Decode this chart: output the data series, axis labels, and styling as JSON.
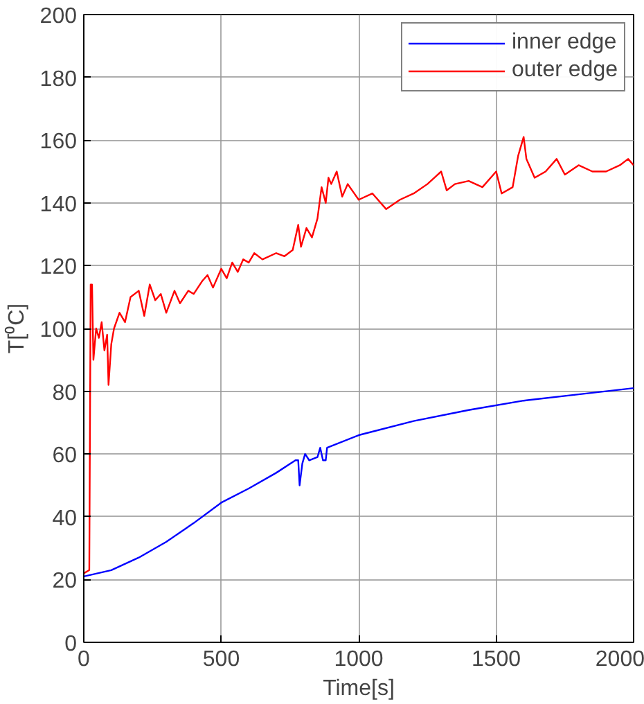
{
  "chart_data": {
    "type": "line",
    "xlabel": "Time[s]",
    "ylabel": "T[⁰C]",
    "xlim": [
      0,
      2000
    ],
    "ylim": [
      0,
      200
    ],
    "xticks": [
      0,
      500,
      1000,
      1500,
      2000
    ],
    "yticks": [
      0,
      20,
      40,
      60,
      80,
      100,
      120,
      140,
      160,
      180,
      200
    ],
    "grid": true,
    "legend": "top right",
    "series": [
      {
        "name": "inner edge",
        "color": "#0000ff",
        "x": [
          0,
          100,
          200,
          300,
          400,
          500,
          600,
          700,
          770,
          780,
          785,
          795,
          805,
          820,
          850,
          860,
          870,
          880,
          885,
          1000,
          1200,
          1400,
          1600,
          1800,
          2000
        ],
        "values": [
          21,
          23,
          27,
          32,
          38,
          44.5,
          49,
          54,
          58,
          58,
          50,
          57,
          60,
          58,
          59,
          62,
          58,
          58,
          62,
          66,
          70.5,
          74,
          77,
          79,
          81
        ]
      },
      {
        "name": "outer edge",
        "color": "#ff0000",
        "x": [
          0,
          20,
          25,
          30,
          35,
          45,
          55,
          65,
          75,
          85,
          90,
          100,
          110,
          130,
          150,
          170,
          200,
          220,
          240,
          260,
          280,
          300,
          330,
          350,
          380,
          400,
          430,
          450,
          470,
          500,
          520,
          540,
          560,
          580,
          600,
          620,
          650,
          700,
          730,
          760,
          780,
          790,
          810,
          830,
          850,
          865,
          880,
          890,
          900,
          920,
          940,
          960,
          1000,
          1050,
          1100,
          1150,
          1200,
          1250,
          1300,
          1320,
          1350,
          1400,
          1450,
          1500,
          1520,
          1560,
          1580,
          1600,
          1610,
          1640,
          1680,
          1720,
          1750,
          1800,
          1850,
          1900,
          1950,
          1980,
          2000
        ],
        "values": [
          22,
          23,
          114,
          114,
          90,
          100,
          97,
          102,
          93,
          98,
          82,
          95,
          100,
          105,
          102,
          110,
          112,
          104,
          114,
          109,
          111,
          105,
          112,
          108,
          112,
          111,
          115,
          117,
          113,
          119,
          116,
          121,
          118,
          122,
          121,
          124,
          122,
          124,
          123,
          125,
          133,
          126,
          132,
          129,
          135,
          145,
          140,
          148,
          146,
          150,
          142,
          146,
          141,
          143,
          138,
          141,
          143,
          146,
          150,
          144,
          146,
          147,
          145,
          150,
          143,
          145,
          155,
          161,
          154,
          148,
          150,
          154,
          149,
          152,
          150,
          150,
          152,
          154,
          152
        ]
      }
    ]
  }
}
